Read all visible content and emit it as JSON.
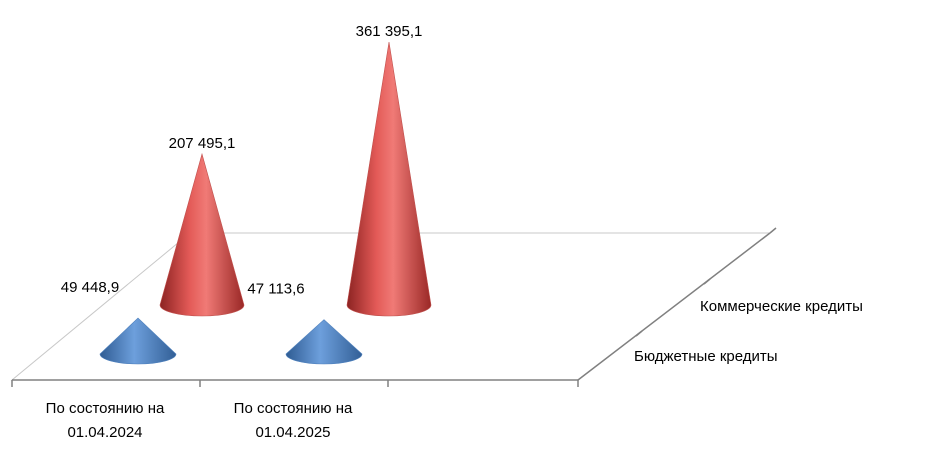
{
  "chart_data": {
    "type": "bar",
    "shape": "3d-cone",
    "categories": [
      "По состоянию на\n01.04.2024",
      "По состоянию на\n01.04.2025"
    ],
    "series": [
      {
        "name": "Бюджетные кредиты",
        "values": [
          49448.9,
          47113.6
        ],
        "value_labels": [
          "49 448,9",
          "47 113,6"
        ],
        "color": "#4F81BD"
      },
      {
        "name": "Коммерческие кредиты",
        "values": [
          207495.1,
          361395.1
        ],
        "value_labels": [
          "207 495,1",
          "361 395,1"
        ],
        "color": "#C0504D"
      }
    ],
    "ylim": [
      0,
      361395.1
    ],
    "grid": false
  }
}
